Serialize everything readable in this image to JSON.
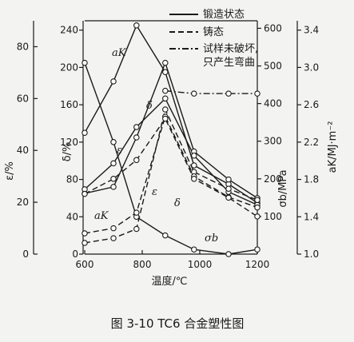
{
  "chart_data": {
    "type": "line",
    "caption": "图 3-10   TC6 合金塑性图",
    "x_axis": {
      "label": "温度/℃",
      "range": [
        600,
        1200
      ],
      "ticks": [
        "600",
        "800",
        "1000",
        "1200"
      ]
    },
    "y_axes": {
      "epsilon": {
        "label": "ε/%",
        "range": [
          0,
          90
        ],
        "ticks": [
          "0",
          "20",
          "40",
          "60",
          "80"
        ]
      },
      "delta": {
        "label": "δ/%",
        "range": [
          0,
          250
        ],
        "ticks": [
          "0",
          "40",
          "80",
          "120",
          "160",
          "200",
          "240"
        ]
      },
      "sigma_b": {
        "label": "σb/MPa",
        "range": [
          0,
          620
        ],
        "ticks": [
          "100",
          "200",
          "300",
          "400",
          "500",
          "600"
        ]
      },
      "a_K": {
        "label": "aK/MJ·m⁻²",
        "range": [
          1.0,
          3.5
        ],
        "ticks": [
          "1.0",
          "1.4",
          "1.8",
          "2.2",
          "2.6",
          "3.0",
          "3.4"
        ]
      }
    },
    "legend": [
      {
        "label": "锻造状态",
        "style": "solid"
      },
      {
        "label": "铸态",
        "style": "dashed"
      },
      {
        "label": "试样未破坏,只产生弯曲",
        "style": "dashdot"
      }
    ],
    "curve_labels": [
      "aK",
      "δ",
      "ε",
      "aK",
      "ε",
      "δ",
      "σb"
    ],
    "series": [
      {
        "curve": "aK",
        "condition": "锻造状态",
        "axis": "a_K",
        "x": [
          600,
          700,
          780,
          880,
          980,
          1100,
          1200
        ],
        "y": [
          3.05,
          2.2,
          1.4,
          1.2,
          1.05,
          1.0,
          1.05
        ]
      },
      {
        "curve": "aK",
        "condition": "锻造状态",
        "axis": "a_K",
        "x": [
          600,
          700,
          780,
          880,
          980,
          1100,
          1200
        ],
        "y": [
          2.3,
          2.85,
          3.45,
          2.95,
          1.95,
          1.75,
          1.55
        ]
      },
      {
        "curve": "δ",
        "condition": "锻造状态",
        "axis": "delta",
        "x": [
          600,
          700,
          780,
          880,
          980,
          1100,
          1200
        ],
        "y": [
          65,
          72,
          125,
          205,
          110,
          80,
          60
        ]
      },
      {
        "curve": "ε",
        "condition": "锻造状态",
        "axis": "epsilon",
        "x": [
          600,
          700,
          780,
          880,
          980,
          1100,
          1200
        ],
        "y": [
          25,
          35,
          49,
          60,
          38,
          24,
          19
        ]
      },
      {
        "curve": "δ",
        "condition": "铸态",
        "axis": "delta",
        "x": [
          600,
          700,
          780,
          880,
          980,
          1100,
          1200
        ],
        "y": [
          12,
          17,
          27,
          155,
          88,
          70,
          58
        ]
      },
      {
        "curve": "ε",
        "condition": "铸态",
        "axis": "epsilon",
        "x": [
          600,
          700,
          780,
          880,
          980,
          1100,
          1200
        ],
        "y": [
          8,
          10,
          16,
          53,
          30,
          22,
          18
        ]
      },
      {
        "curve": "σb",
        "condition": "铸态",
        "axis": "sigma_b",
        "x": [
          600,
          700,
          780,
          880,
          980,
          1100,
          1200
        ],
        "y": [
          160,
          200,
          250,
          360,
          200,
          150,
          100
        ]
      },
      {
        "curve": "δ",
        "condition": "试样未破坏,只产生弯曲",
        "axis": "delta",
        "x": [
          880,
          980,
          1100,
          1200
        ],
        "y": [
          175,
          172,
          172,
          172
        ]
      }
    ]
  }
}
